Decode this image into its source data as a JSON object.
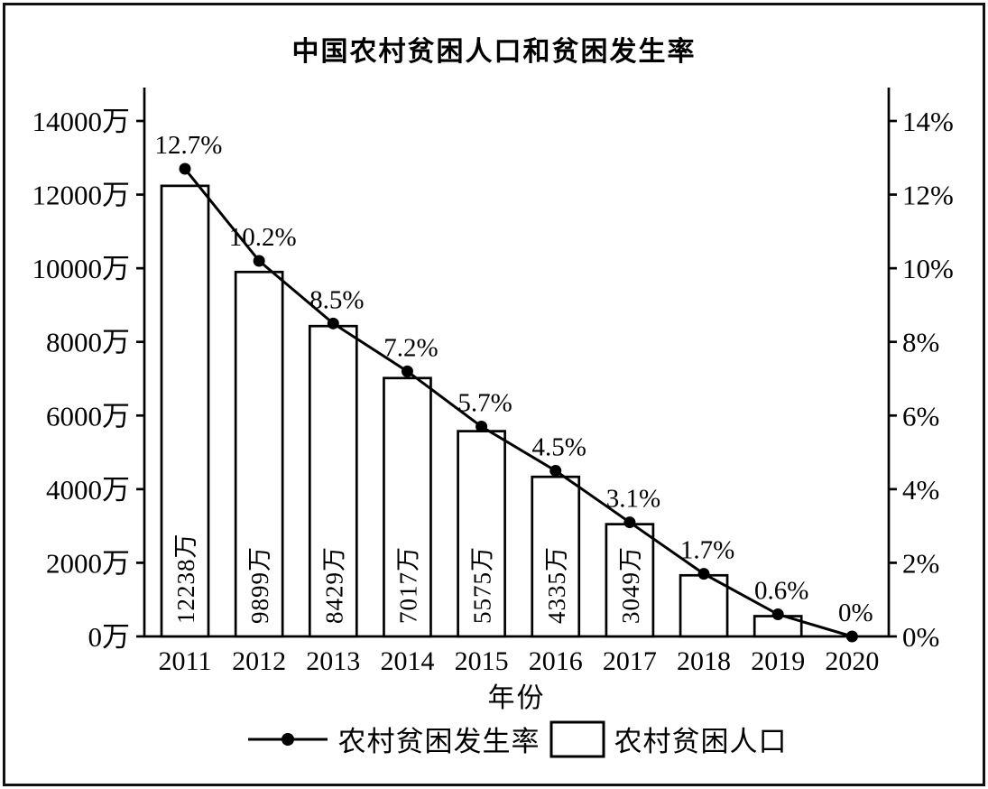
{
  "chart_data": {
    "type": "bar",
    "subtype": "combo-bar-line-dual-axis",
    "title": "中国农村贫困人口和贫困发生率",
    "xlabel": "年份",
    "categories": [
      "2011",
      "2012",
      "2013",
      "2014",
      "2015",
      "2016",
      "2017",
      "2018",
      "2019",
      "2020"
    ],
    "series": [
      {
        "name": "农村贫困人口",
        "type": "bar",
        "unit": "万",
        "axis": "left",
        "values": [
          12238,
          9899,
          8429,
          7017,
          5575,
          4335,
          3049,
          1660,
          551,
          0
        ],
        "bar_labels": [
          "12238万",
          "9899万",
          "8429万",
          "7017万",
          "5575万",
          "4335万",
          "3049万",
          "",
          "",
          ""
        ]
      },
      {
        "name": "农村贫困发生率",
        "type": "line",
        "unit": "%",
        "axis": "right",
        "values": [
          12.7,
          10.2,
          8.5,
          7.2,
          5.7,
          4.5,
          3.1,
          1.7,
          0.6,
          0
        ],
        "point_labels": [
          "12.7%",
          "10.2%",
          "8.5%",
          "7.2%",
          "5.7%",
          "4.5%",
          "3.1%",
          "1.7%",
          "0.6%",
          "0%"
        ]
      }
    ],
    "left_axis": {
      "min": 0,
      "max": 14000,
      "step": 2000,
      "tick_labels": [
        "0万",
        "2000万",
        "4000万",
        "6000万",
        "8000万",
        "10000万",
        "12000万",
        "14000万"
      ]
    },
    "right_axis": {
      "min": 0,
      "max": 14,
      "step": 2,
      "tick_labels": [
        "0%",
        "2%",
        "4%",
        "6%",
        "8%",
        "10%",
        "12%",
        "14%"
      ]
    },
    "legend": [
      {
        "label": "农村贫困发生率",
        "marker": "line-dot"
      },
      {
        "label": "农村贫困人口",
        "marker": "open-rect"
      }
    ],
    "grid": false,
    "legend_position": "bottom-center",
    "colors": {
      "stroke": "#000000",
      "bar_fill": "#ffffff",
      "background": "#ffffff"
    }
  }
}
